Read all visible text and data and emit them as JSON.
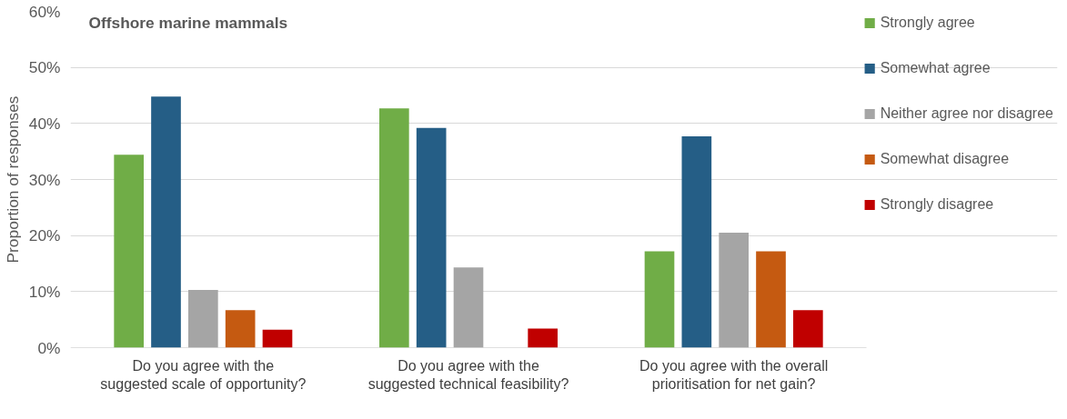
{
  "chart_data": {
    "type": "bar",
    "title": "Offshore marine mammals",
    "ylabel": "Proportion of responses",
    "categories": [
      "Do you agree with the\nsuggested scale of opportunity?",
      "Do you agree with the\nsuggested technical feasibility?",
      "Do you agree with the overall\nprioritisation for net gain?"
    ],
    "series": [
      {
        "name": "Strongly agree",
        "color": "#70ad47",
        "values": [
          34.4,
          42.7,
          17.2
        ]
      },
      {
        "name": "Somewhat agree",
        "color": "#255e86",
        "values": [
          44.8,
          39.2,
          37.7
        ]
      },
      {
        "name": "Neither agree nor disagree",
        "color": "#a5a5a5",
        "values": [
          10.3,
          14.3,
          20.5
        ]
      },
      {
        "name": "Somewhat disagree",
        "color": "#c55a11",
        "values": [
          6.7,
          null,
          17.2
        ]
      },
      {
        "name": "Strongly disagree",
        "color": "#c00000",
        "values": [
          3.2,
          3.4,
          6.7
        ]
      }
    ],
    "ylim": [
      0,
      60
    ],
    "yticks": [
      {
        "value": 0,
        "label": "0%"
      },
      {
        "value": 10,
        "label": "10%"
      },
      {
        "value": 20,
        "label": "20%"
      },
      {
        "value": 30,
        "label": "30%"
      },
      {
        "value": 40,
        "label": "40%"
      },
      {
        "value": 50,
        "label": "50%"
      },
      {
        "value": 60,
        "label": "60%"
      }
    ],
    "grid": "y",
    "legend": "right"
  }
}
